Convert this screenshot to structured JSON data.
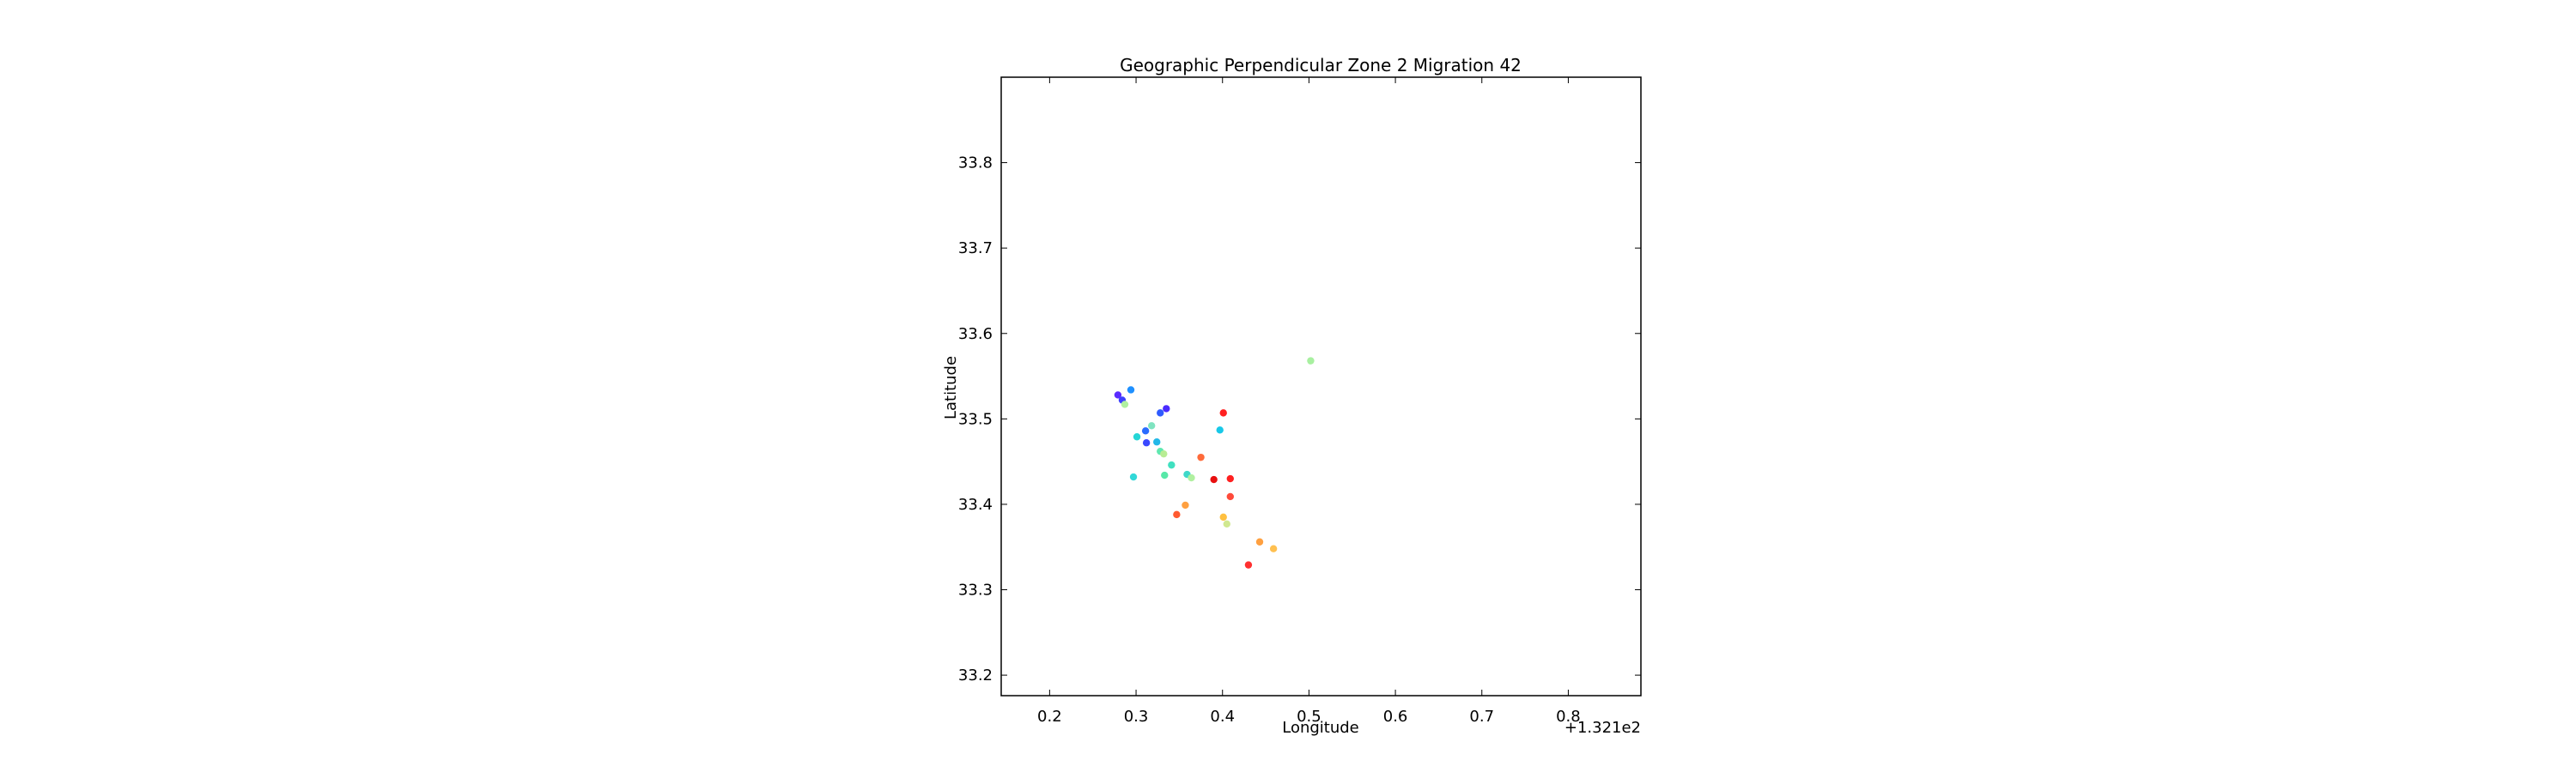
{
  "chart_data": {
    "type": "scatter",
    "title": "Geographic Perpendicular Zone 2 Migration 42",
    "xlabel": "Longitude",
    "ylabel": "Latitude",
    "x_offset_label": "+1.321e2",
    "xlim": [
      0.144,
      0.884
    ],
    "ylim": [
      33.176,
      33.9
    ],
    "xticks": [
      0.2,
      0.3,
      0.4,
      0.5,
      0.6,
      0.7,
      0.8
    ],
    "yticks": [
      33.2,
      33.3,
      33.4,
      33.5,
      33.6,
      33.7,
      33.8
    ],
    "xtick_labels": [
      "0.2",
      "0.3",
      "0.4",
      "0.5",
      "0.6",
      "0.7",
      "0.8"
    ],
    "ytick_labels": [
      "33.2",
      "33.3",
      "33.4",
      "33.5",
      "33.6",
      "33.7",
      "33.8"
    ],
    "grid": false,
    "points": [
      {
        "x": 0.279,
        "y": 33.528,
        "color": "#5a2bff"
      },
      {
        "x": 0.284,
        "y": 33.522,
        "color": "#3c40ff"
      },
      {
        "x": 0.287,
        "y": 33.517,
        "color": "#b0f0a0"
      },
      {
        "x": 0.294,
        "y": 33.534,
        "color": "#1e90ff"
      },
      {
        "x": 0.328,
        "y": 33.507,
        "color": "#2f5bff"
      },
      {
        "x": 0.335,
        "y": 33.512,
        "color": "#4a2bff"
      },
      {
        "x": 0.311,
        "y": 33.486,
        "color": "#2a6cff"
      },
      {
        "x": 0.318,
        "y": 33.492,
        "color": "#7fe3c0"
      },
      {
        "x": 0.301,
        "y": 33.479,
        "color": "#25d6d6"
      },
      {
        "x": 0.312,
        "y": 33.472,
        "color": "#3a48ff"
      },
      {
        "x": 0.324,
        "y": 33.473,
        "color": "#22b8e8"
      },
      {
        "x": 0.328,
        "y": 33.462,
        "color": "#60e8b0"
      },
      {
        "x": 0.332,
        "y": 33.459,
        "color": "#b8ec94"
      },
      {
        "x": 0.341,
        "y": 33.446,
        "color": "#40e0c0"
      },
      {
        "x": 0.333,
        "y": 33.434,
        "color": "#58e8a8"
      },
      {
        "x": 0.297,
        "y": 33.432,
        "color": "#32d8d8"
      },
      {
        "x": 0.359,
        "y": 33.435,
        "color": "#3ed8c8"
      },
      {
        "x": 0.364,
        "y": 33.431,
        "color": "#b0f0a0"
      },
      {
        "x": 0.397,
        "y": 33.487,
        "color": "#18c8e8"
      },
      {
        "x": 0.401,
        "y": 33.507,
        "color": "#ff2020"
      },
      {
        "x": 0.375,
        "y": 33.455,
        "color": "#ff6a3a"
      },
      {
        "x": 0.39,
        "y": 33.429,
        "color": "#e81010"
      },
      {
        "x": 0.409,
        "y": 33.43,
        "color": "#ff2020"
      },
      {
        "x": 0.409,
        "y": 33.409,
        "color": "#ff4a3a"
      },
      {
        "x": 0.357,
        "y": 33.399,
        "color": "#ffa040"
      },
      {
        "x": 0.347,
        "y": 33.388,
        "color": "#ff5a30"
      },
      {
        "x": 0.401,
        "y": 33.385,
        "color": "#ffc040"
      },
      {
        "x": 0.405,
        "y": 33.377,
        "color": "#d0e890"
      },
      {
        "x": 0.443,
        "y": 33.356,
        "color": "#ffa040"
      },
      {
        "x": 0.459,
        "y": 33.348,
        "color": "#ffc050"
      },
      {
        "x": 0.43,
        "y": 33.329,
        "color": "#ff3030"
      },
      {
        "x": 0.502,
        "y": 33.568,
        "color": "#a8f0a0"
      }
    ]
  }
}
